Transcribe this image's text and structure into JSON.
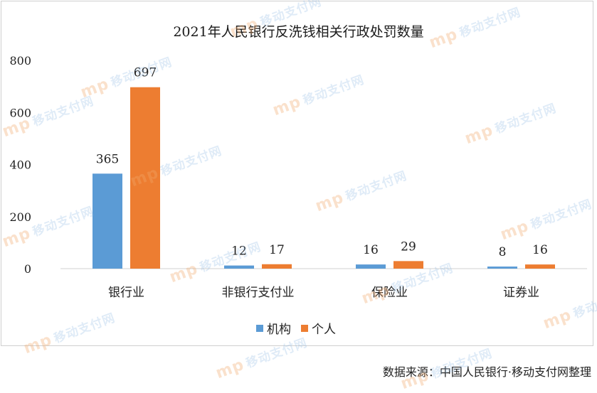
{
  "chart_data": {
    "type": "bar",
    "title": "2021年人民银行反洗钱相关行政处罚数量",
    "categories": [
      "银行业",
      "非银行支付业",
      "保险业",
      "证券业"
    ],
    "series": [
      {
        "name": "机构",
        "values": [
          365,
          12,
          16,
          8
        ],
        "color": "#5b9bd5"
      },
      {
        "name": "个人",
        "values": [
          697,
          17,
          29,
          16
        ],
        "color": "#ed7d31"
      }
    ],
    "yticks": [
      0,
      200,
      400,
      600,
      800
    ],
    "ylim": [
      0,
      800
    ],
    "grid": false,
    "legend_position": "bottom"
  },
  "source": "数据来源：中国人民银行·移动支付网整理",
  "watermark": {
    "logo": "mp",
    "text": "移动支付网"
  }
}
